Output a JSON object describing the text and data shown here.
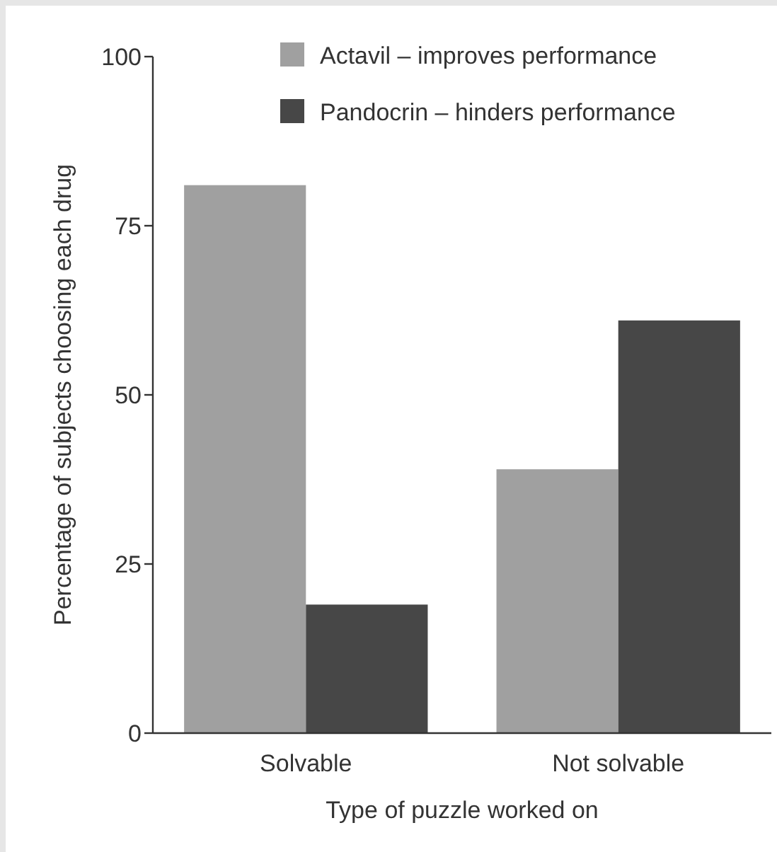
{
  "chart_data": {
    "type": "bar",
    "xlabel": "Type of puzzle worked on",
    "ylabel": "Percentage of subjects choosing each drug",
    "categories": [
      "Solvable",
      "Not solvable"
    ],
    "series": [
      {
        "name": "Actavil – improves performance",
        "color": "#a0a0a0",
        "values": [
          81,
          39
        ]
      },
      {
        "name": "Pandocrin – hinders performance",
        "color": "#474747",
        "values": [
          19,
          61
        ]
      }
    ],
    "ylim": [
      0,
      100
    ],
    "yticks": [
      0,
      25,
      50,
      75,
      100
    ],
    "grid": false,
    "legend": "top right"
  }
}
